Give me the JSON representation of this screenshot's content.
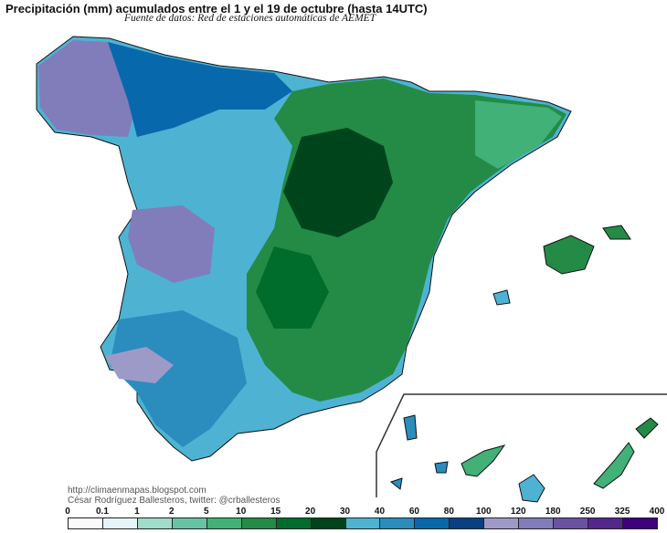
{
  "title": "Precipitación (mm) acumulados entre el 1 y el 19 de octubre (hasta 14UTC)",
  "subtitle": "Fuente de datos: Red de estaciones automáticas de AEMET",
  "credits": {
    "url": "http://climaenmapas.blogspot.com",
    "author": "César Rodríguez Ballesteros, twitter: @crballesteros"
  },
  "legend": {
    "thresholds": [
      "0",
      "0.1",
      "1",
      "2",
      "5",
      "10",
      "15",
      "20",
      "30",
      "40",
      "60",
      "80",
      "100",
      "120",
      "180",
      "250",
      "325",
      "400"
    ],
    "colors": [
      "#fafafa",
      "#e4f4f8",
      "#9fdcc9",
      "#66c4a4",
      "#41b177",
      "#238b45",
      "#006d2c",
      "#00441b",
      "#4eb3d3",
      "#2b8cbe",
      "#0868ac",
      "#084081",
      "#9e9ac8",
      "#807dba",
      "#6a51a3",
      "#54278f",
      "#3f007d"
    ]
  }
}
